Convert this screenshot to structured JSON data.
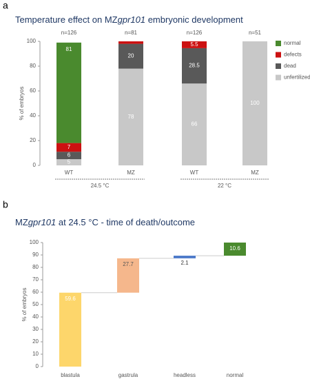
{
  "chart_data": [
    {
      "type": "stacked-bar",
      "panel": "a",
      "title": [
        {
          "text": "Temperature effect on MZ"
        },
        {
          "text": "gpr101",
          "italic": true
        },
        {
          "text": " embryonic development"
        }
      ],
      "y_label": "% of embryos",
      "categories": [
        "WT",
        "MZ",
        "WT",
        "MZ"
      ],
      "n_labels": [
        "n=126",
        "n=81",
        "n=126",
        "n=51"
      ],
      "groups": [
        "24.5 °C",
        "22 °C"
      ],
      "ylim": [
        0,
        100
      ],
      "yticks": [
        0,
        20,
        40,
        60,
        80,
        100
      ],
      "legend": "right",
      "series": [
        {
          "name": "normal",
          "color": "#4a8a2e",
          "values": [
            81,
            0,
            0,
            0
          ]
        },
        {
          "name": "defects",
          "color": "#cc1111",
          "values": [
            7,
            2,
            5.5,
            0
          ]
        },
        {
          "name": "dead",
          "color": "#595959",
          "values": [
            6,
            20,
            28.5,
            0
          ]
        },
        {
          "name": "unfertilized",
          "color": "#c8c8c8",
          "values": [
            5,
            78,
            66,
            100
          ]
        }
      ]
    },
    {
      "type": "waterfall",
      "panel": "b",
      "title": [
        {
          "text": "MZ"
        },
        {
          "text": "gpr101",
          "italic": true
        },
        {
          "text": " at 24.5 °C - time of death/outcome"
        }
      ],
      "y_label": "% of embryos",
      "categories": [
        "blastula",
        "gastrula",
        "headless",
        "normal"
      ],
      "values": [
        59.6,
        27.7,
        2.1,
        10.6
      ],
      "colors": [
        "#fdd66b",
        "#f5b78c",
        "#4a78c8",
        "#4a8a2e"
      ],
      "ylim": [
        0,
        100
      ],
      "yticks": [
        0,
        10,
        20,
        30,
        40,
        50,
        60,
        70,
        80,
        90,
        100
      ]
    }
  ]
}
